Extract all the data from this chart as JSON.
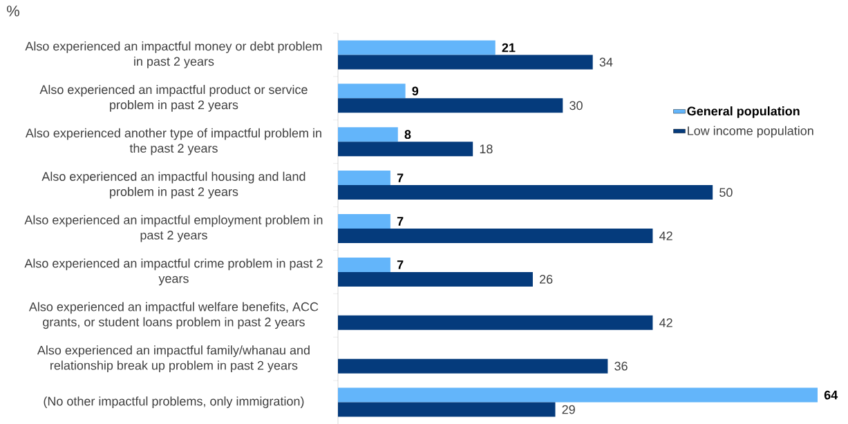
{
  "chart_data": {
    "type": "bar",
    "orientation": "horizontal",
    "title": "%",
    "categories": [
      "Also experienced an impactful money or debt problem in past 2 years",
      "Also experienced an impactful product or service problem in past 2 years",
      "Also experienced another type of impactful problem in the past 2 years",
      "Also experienced an impactful housing and land problem in past 2 years",
      "Also experienced an impactful employment problem in past 2 years",
      "Also experienced an impactful crime problem in past 2 years",
      "Also experienced an impactful welfare benefits, ACC grants, or student loans problem in past 2 years",
      "Also experienced an impactful family/whanau and relationship break up problem in past 2 years",
      "(No other impactful problems, only immigration)"
    ],
    "series": [
      {
        "name": "General population",
        "color": "#63b5fa",
        "values": [
          21,
          9,
          8,
          7,
          7,
          7,
          null,
          null,
          64
        ]
      },
      {
        "name": "Low income population",
        "color": "#053b7c",
        "values": [
          34,
          30,
          18,
          50,
          42,
          26,
          42,
          36,
          29
        ]
      }
    ],
    "data_labels": true,
    "legend": "top right"
  }
}
